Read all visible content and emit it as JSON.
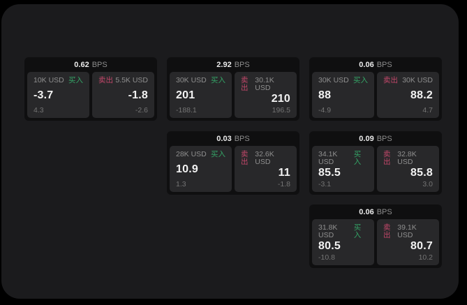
{
  "page": {
    "background": "#000000",
    "window_background": "#1b1b1d"
  },
  "colors": {
    "buy_green": "#34a366",
    "sell_red": "#c2476a",
    "card_bg": "#0f0f10",
    "panel_bg": "#28282a"
  },
  "labels": {
    "buy": "买入",
    "sell": "卖出",
    "bps_unit": "BPS"
  },
  "cards": [
    {
      "bps": "0.62",
      "buy": {
        "amount": "10K USD",
        "price": "-3.7",
        "delta": "4.3"
      },
      "sell": {
        "amount": "5.5K USD",
        "price": "-1.8",
        "delta": "-2.6"
      }
    },
    {
      "bps": "2.92",
      "buy": {
        "amount": "30K USD",
        "price": "201",
        "delta": "-188.1"
      },
      "sell": {
        "amount": "30.1K USD",
        "price": "210",
        "delta": "196.5"
      }
    },
    {
      "bps": "0.06",
      "buy": {
        "amount": "30K USD",
        "price": "88",
        "delta": "-4.9"
      },
      "sell": {
        "amount": "30K USD",
        "price": "88.2",
        "delta": "4.7"
      }
    },
    {
      "bps": "0.03",
      "buy": {
        "amount": "28K USD",
        "price": "10.9",
        "delta": "1.3"
      },
      "sell": {
        "amount": "32.6K USD",
        "price": "11",
        "delta": "-1.8"
      }
    },
    {
      "bps": "0.09",
      "buy": {
        "amount": "34.1K USD",
        "price": "85.5",
        "delta": "-3.1"
      },
      "sell": {
        "amount": "32.8K USD",
        "price": "85.8",
        "delta": "3.0"
      }
    },
    {
      "bps": "0.06",
      "buy": {
        "amount": "31.8K USD",
        "price": "80.5",
        "delta": "-10.8"
      },
      "sell": {
        "amount": "39.1K USD",
        "price": "80.7",
        "delta": "10.2"
      }
    }
  ]
}
